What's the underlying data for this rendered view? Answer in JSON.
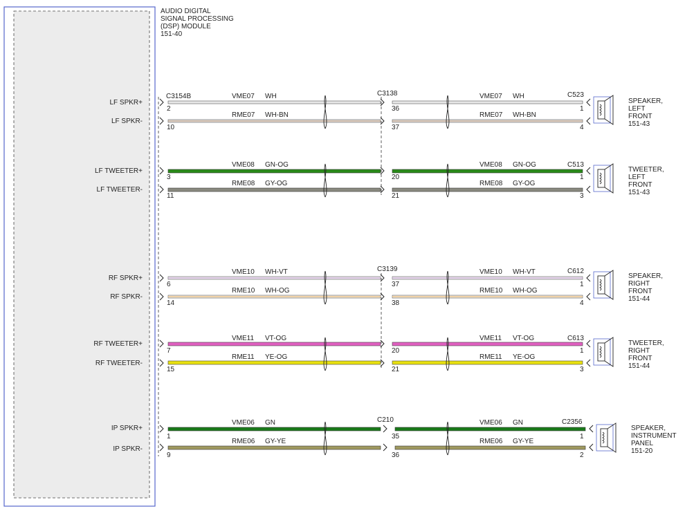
{
  "module": {
    "title_lines": [
      "AUDIO DIGITAL",
      "SIGNAL PROCESSING",
      "(DSP) MODULE",
      "151-40"
    ],
    "pin_connector": "C3154B"
  },
  "colors": {
    "WH": "#e8e8e8",
    "WH-BN": "#c8a080",
    "GN-OG": "#2a8a1a",
    "GY-OG": "#8a8a80",
    "WH-VT": "#d8b8e0",
    "WH-OG": "#f0c890",
    "VT-OG": "#e060c0",
    "YE-OG": "#e8e010",
    "GN": "#1a7a1a",
    "GY-YE": "#a09a60",
    "frame": "#5566cc"
  },
  "groups": [
    {
      "id": "lf-spkr",
      "mid_connector": "C3138",
      "end_connector": "C523",
      "device_lines": [
        "SPEAKER,",
        "LEFT",
        "FRONT",
        "151-43"
      ],
      "circuits": [
        {
          "signal": "LF SPKR+",
          "circuit": "VME07",
          "color": "WH",
          "pin_a": "2",
          "pin_b": "36",
          "pin_c": "1"
        },
        {
          "signal": "LF SPKR-",
          "circuit": "RME07",
          "color": "WH-BN",
          "pin_a": "10",
          "pin_b": "37",
          "pin_c": "4"
        }
      ]
    },
    {
      "id": "lf-tweeter",
      "mid_connector": "",
      "end_connector": "C513",
      "device_lines": [
        "TWEETER,",
        "LEFT",
        "FRONT",
        "151-43"
      ],
      "circuits": [
        {
          "signal": "LF TWEETER+",
          "circuit": "VME08",
          "color": "GN-OG",
          "pin_a": "3",
          "pin_b": "20",
          "pin_c": "1"
        },
        {
          "signal": "LF TWEETER-",
          "circuit": "RME08",
          "color": "GY-OG",
          "pin_a": "11",
          "pin_b": "21",
          "pin_c": "3"
        }
      ]
    },
    {
      "id": "rf-spkr",
      "mid_connector": "C3139",
      "end_connector": "C612",
      "device_lines": [
        "SPEAKER,",
        "RIGHT",
        "FRONT",
        "151-44"
      ],
      "circuits": [
        {
          "signal": "RF SPKR+",
          "circuit": "VME10",
          "color": "WH-VT",
          "pin_a": "6",
          "pin_b": "37",
          "pin_c": "1"
        },
        {
          "signal": "RF SPKR-",
          "circuit": "RME10",
          "color": "WH-OG",
          "pin_a": "14",
          "pin_b": "38",
          "pin_c": "4"
        }
      ]
    },
    {
      "id": "rf-tweeter",
      "mid_connector": "",
      "end_connector": "C613",
      "device_lines": [
        "TWEETER,",
        "RIGHT",
        "FRONT",
        "151-44"
      ],
      "circuits": [
        {
          "signal": "RF TWEETER+",
          "circuit": "VME11",
          "color": "VT-OG",
          "pin_a": "7",
          "pin_b": "20",
          "pin_c": "1"
        },
        {
          "signal": "RF TWEETER-",
          "circuit": "RME11",
          "color": "YE-OG",
          "pin_a": "15",
          "pin_b": "21",
          "pin_c": "3"
        }
      ]
    },
    {
      "id": "ip-spkr",
      "mid_connector": "C210",
      "end_connector": "C2356",
      "device_lines": [
        "SPEAKER,",
        "INSTRUMENT",
        "PANEL",
        "151-20"
      ],
      "circuits": [
        {
          "signal": "IP SPKR+",
          "circuit": "VME06",
          "color": "GN",
          "pin_a": "1",
          "pin_b": "35",
          "pin_c": "1"
        },
        {
          "signal": "IP SPKR-",
          "circuit": "RME06",
          "color": "GY-YE",
          "pin_a": "9",
          "pin_b": "36",
          "pin_c": "2"
        }
      ]
    }
  ]
}
